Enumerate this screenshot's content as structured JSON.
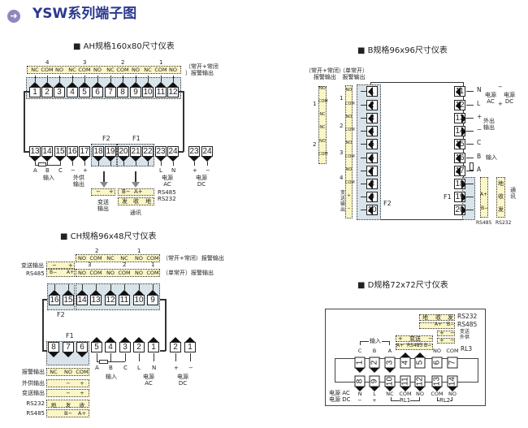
{
  "title": "YSW系列端子图",
  "title_icon": "arrow-right-circle-icon",
  "accent": "#2b3990",
  "ah": {
    "heading": "AH规格160x80尺寸仪表",
    "groups": [
      "4",
      "3",
      "2",
      "1"
    ],
    "alarm_labels": [
      "NC",
      "COM",
      "NO",
      "NC",
      "COM",
      "NO",
      "NC",
      "COM",
      "NO",
      "NC",
      "COM",
      "NO"
    ],
    "note1": "（常开+常闭",
    "note2": "）报警输出",
    "top_terminals": [
      "1",
      "2",
      "3",
      "4",
      "5",
      "6",
      "7",
      "8",
      "9",
      "10",
      "11",
      "12"
    ],
    "bottom_terminals": [
      "13",
      "14",
      "15",
      "16",
      "17",
      "18",
      "19",
      "20",
      "21",
      "22",
      "23",
      "24"
    ],
    "dc_terminals": [
      "23",
      "24"
    ],
    "f2": "F2",
    "f1": "F1",
    "bottom_labels": [
      "A",
      "B",
      "C",
      "−",
      "+",
      "L",
      "N",
      "+",
      "−"
    ],
    "input": "输入",
    "aux_out": "外供\n输出",
    "power_ac": "电源\nAC",
    "power_dc": "电源\nDC",
    "transmit_box": [
      "−",
      "+"
    ],
    "rs485_box": [
      "B−",
      "A+"
    ],
    "rs232_box": [
      "发",
      "收",
      "地"
    ],
    "rs485": "RS485",
    "rs232": "RS232",
    "transmit_out": "变送\n输出",
    "comm": "通讯"
  },
  "b": {
    "heading": "B规格96x96尺寸仪表",
    "note_nonc": "（常开+常闭）\n报警输出",
    "note_no": "（单常开）\n报警输出",
    "col1_labels": [
      "NO",
      "COM",
      "NC",
      "NC",
      "NO",
      "COM"
    ],
    "col1_groups": [
      "1",
      "2"
    ],
    "col2_labels": [
      "NO",
      "COM",
      "NO",
      "COM",
      "NO",
      "COM",
      "NO",
      "COM",
      "+",
      "−"
    ],
    "col2_groups": [
      "1",
      "2",
      "3",
      "4"
    ],
    "col2_side": "变\n送\n输\n出",
    "left_terminals": [
      "1",
      "2",
      "3",
      "4",
      "5",
      "6",
      "7",
      "8",
      "9",
      "10"
    ],
    "right_terminals": [
      "11",
      "12",
      "13",
      "14",
      "15",
      "16",
      "17",
      "18",
      "19",
      "20"
    ],
    "right_labels": [
      "N",
      "L",
      "+",
      "−",
      "C",
      "B",
      "A"
    ],
    "power_ac": "电源\nAC",
    "power_dc": "电源\nDC",
    "minus": "−",
    "plus": "+",
    "aux_out": "外出\n输出",
    "input": "输入",
    "f2": "F2",
    "f1": "F1",
    "rs485_col": [
      "A+",
      "B−"
    ],
    "rs232_col": [
      "地",
      "收",
      "发"
    ],
    "comm": "通\n讯",
    "rs485": "RS485",
    "rs232": "RS232"
  },
  "ch": {
    "heading": "CH规格96x48尺寸仪表",
    "row1_groups": [
      "2",
      "1"
    ],
    "row1_labels": [
      "NO",
      "COM",
      "NC",
      "NC",
      "NO",
      "COM"
    ],
    "row1_note": "（常开+常闭）报警输出",
    "row2_groups": [
      "3",
      "2",
      "1"
    ],
    "row2_labels": [
      "NO",
      "COM",
      "NO",
      "COM",
      "NO",
      "COM"
    ],
    "row2_note": "（单常开）报警输出",
    "transmit_label": "变送输出",
    "rs485_label": "RS485",
    "f2_top": [
      "−",
      "+"
    ],
    "f2_bottom": [
      "B−",
      "A+"
    ],
    "top_terminals": [
      "16",
      "15",
      "14",
      "13",
      "12",
      "11",
      "10",
      "9"
    ],
    "bottom_terminals": [
      "8",
      "7",
      "6",
      "5",
      "4",
      "3",
      "2",
      "1"
    ],
    "dc_terminals": [
      "2",
      "1"
    ],
    "f2": "F2",
    "f1": "F1",
    "bottom_labels": [
      "A",
      "B",
      "C",
      "L",
      "N",
      "+",
      "−"
    ],
    "input": "输入",
    "power_ac": "电源\nAC",
    "power_dc": "电源\nDC",
    "table": [
      {
        "label": "报警输出",
        "cells": [
          "NC",
          "NO",
          "COM"
        ]
      },
      {
        "label": "外供输出",
        "cells": [
          "",
          "−",
          "+"
        ]
      },
      {
        "label": "变送输出",
        "cells": [
          "",
          "−",
          "+"
        ]
      },
      {
        "label": "RS232",
        "cells": [
          "地",
          "发",
          "收"
        ]
      },
      {
        "label": "RS485",
        "cells": [
          "",
          "B−",
          "A+"
        ]
      }
    ]
  },
  "d": {
    "heading": "D规格72x72尺寸仪表",
    "rs232_box": [
      "地",
      "收",
      "发"
    ],
    "rs232": "RS232",
    "rs485_box": [
      "A+",
      "B−"
    ],
    "rs485": "RS485",
    "transmit_box": [
      "+",
      "−"
    ],
    "aux_box": [
      "+",
      "−"
    ],
    "transmit_aux": "变送\n外供",
    "input": "输入",
    "transmit_mid": [
      "+",
      "变送",
      "−"
    ],
    "rs485_mid": [
      "A+",
      "RS485",
      "B−"
    ],
    "top_labels": [
      "C",
      "B",
      "A",
      "NO",
      "COM"
    ],
    "rl3": "RL3",
    "top_terminals": [
      "1",
      "2",
      "3",
      "4",
      "5",
      "6",
      "7"
    ],
    "bottom_terminals": [
      "8",
      "9",
      "10",
      "11",
      "12",
      "13",
      "14"
    ],
    "power_ac": "电源 AC",
    "power_dc": "电源 DC",
    "bottom_labels": [
      [
        "N",
        "−"
      ],
      [
        "L",
        "+"
      ],
      [
        "NC",
        ""
      ],
      [
        "COM",
        ""
      ],
      [
        "NO",
        ""
      ],
      [
        "COM",
        ""
      ],
      [
        "NO",
        ""
      ]
    ],
    "rl1": "RL1",
    "rl2": "RL2"
  }
}
